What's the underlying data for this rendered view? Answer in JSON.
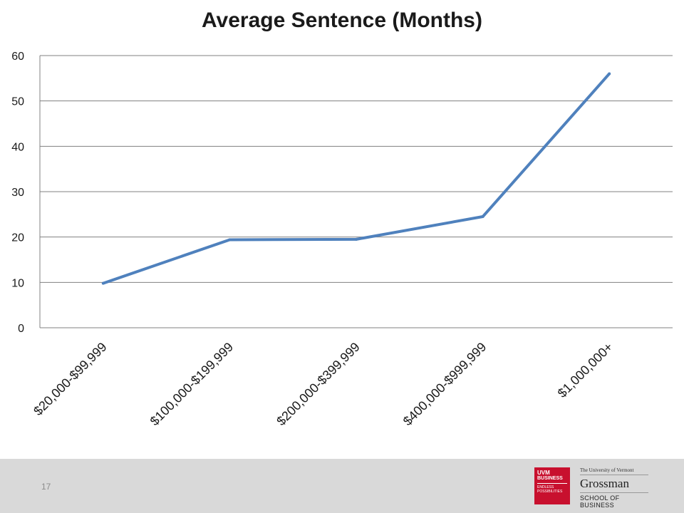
{
  "chart_data": {
    "type": "line",
    "title": "Average Sentence (Months)",
    "categories": [
      "$20,000-$99,999",
      "$100,000-$199,999",
      "$200,000-$399,999",
      "$400,000-$999,999",
      "$1,000,000+"
    ],
    "series": [
      {
        "values": [
          9.8,
          19.4,
          19.5,
          24.5,
          56
        ]
      }
    ],
    "xlabel": "",
    "ylabel": "",
    "ylim": [
      0,
      60
    ],
    "yticks": [
      0,
      10,
      20,
      30,
      40,
      50,
      60
    ],
    "grid": true,
    "legend": "none",
    "colors": {
      "line": "#4f81bd",
      "grid": "#808080",
      "axis": "#808080",
      "tick_text": "#1a1a1a"
    }
  },
  "footer": {
    "page_number": "17",
    "logo_uvm": {
      "line1": "UVM",
      "line2": "BUSINESS",
      "line3": "ENDLESS POSSIBILITIES",
      "color": "#c8102e"
    },
    "logo_grossman": {
      "line1": "The University of Vermont",
      "line2": "Grossman",
      "line3": "SCHOOL OF BUSINESS"
    }
  }
}
